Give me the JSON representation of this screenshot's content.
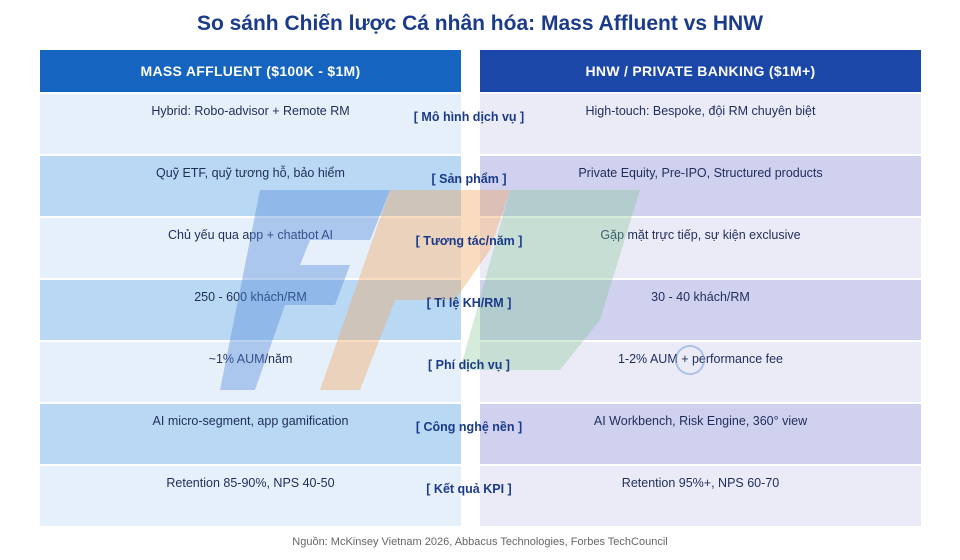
{
  "title": "So sánh Chiến lược Cá nhân hóa: Mass Affluent vs HNW",
  "columns": [
    "MASS AFFLUENT ($100K - $1M)",
    "HNW / PRIVATE BANKING ($1M+)"
  ],
  "rows": [
    {
      "left": "Hybrid: Robo-advisor + Remote RM",
      "label": "[ Mô hình dịch vụ ]",
      "right": "High-touch: Bespoke, đội RM chuyên biệt"
    },
    {
      "left": "Quỹ ETF, quỹ tương hỗ, bảo hiểm",
      "label": "[ Sản phẩm ]",
      "right": "Private Equity, Pre-IPO, Structured products"
    },
    {
      "left": "Chủ yếu qua app + chatbot AI",
      "label": "[ Tương tác/năm ]",
      "right": "Gặp mặt trực tiếp, sự kiện exclusive"
    },
    {
      "left": "250 - 600 khách/RM",
      "label": "[ Tỉ lệ KH/RM ]",
      "right": "30 - 40 khách/RM"
    },
    {
      "left": "~1% AUM/năm",
      "label": "[ Phí dịch vụ ]",
      "right": "1-2% AUM + performance fee"
    },
    {
      "left": "AI micro-segment, app gamification",
      "label": "[ Công nghệ nền ]",
      "right": "AI Workbench, Risk Engine, 360° view"
    },
    {
      "left": "Retention 85-90%, NPS 40-50",
      "label": "[ Kết quả KPI ]",
      "right": "Retention 95%+, NPS 60-70"
    }
  ],
  "source": "Nguồn: McKinsey Vietnam 2026, Abbacus Technologies, Forbes TechCouncil"
}
